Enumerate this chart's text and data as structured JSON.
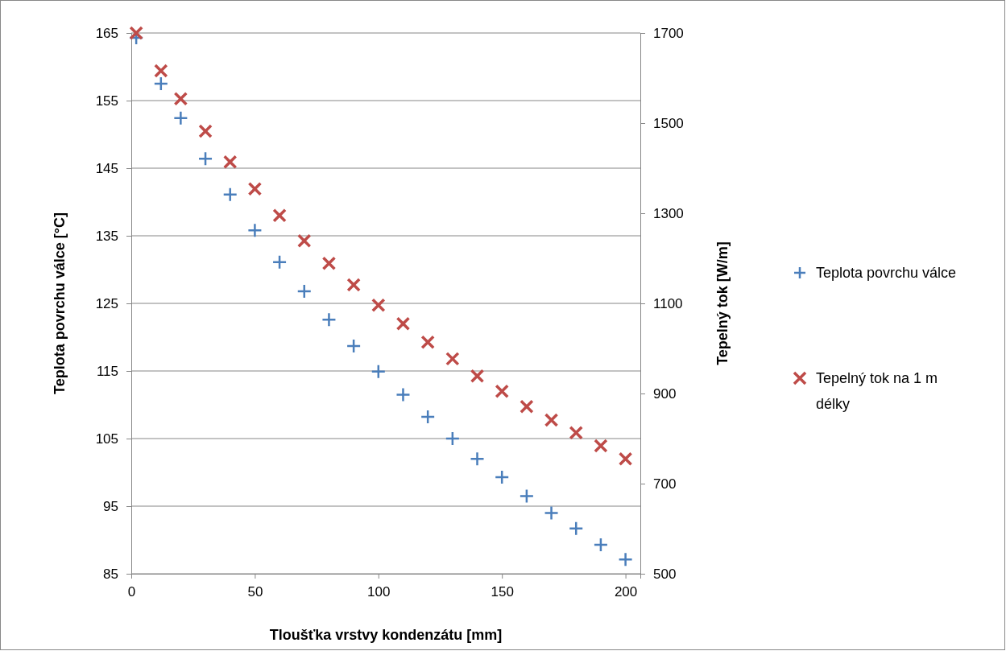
{
  "chart_data": {
    "type": "scatter",
    "xlabel": "Tloušťka vrstvy kondenzátu [mm]",
    "ylabel": "Teplota povrchu válce [°C]",
    "y2label": "Tepelný tok [W/m]",
    "x": [
      2,
      12,
      20,
      30,
      40,
      50,
      60,
      70,
      80,
      90,
      100,
      110,
      120,
      130,
      140,
      150,
      160,
      170,
      180,
      190,
      200
    ],
    "xlim": [
      0,
      206
    ],
    "xticks": [
      0,
      50,
      100,
      150,
      200
    ],
    "ylim": [
      85,
      165
    ],
    "yticks": [
      85,
      95,
      105,
      115,
      125,
      135,
      145,
      155,
      165
    ],
    "y2lim": [
      500,
      1700
    ],
    "y2ticks": [
      500,
      700,
      900,
      1100,
      1300,
      1500,
      1700
    ],
    "grid": "y",
    "legend": "right",
    "series": [
      {
        "name": "Teplota povrchu válce",
        "color": "#4a7ebb",
        "marker": "plus",
        "values": [
          164.3,
          157.5,
          152.4,
          146.4,
          141.1,
          135.8,
          131.1,
          126.8,
          122.6,
          118.7,
          114.9,
          111.5,
          108.2,
          105.0,
          102.0,
          99.3,
          96.5,
          94.0,
          91.7,
          89.3,
          87.1
        ]
      },
      {
        "name": "Tepelný tok na 1 m délky",
        "color": "#be4b48",
        "marker": "cross",
        "axis": "y2",
        "values": [
          1700,
          1616,
          1554,
          1482,
          1414,
          1354,
          1295,
          1239,
          1189,
          1141,
          1096,
          1055,
          1014,
          977,
          939,
          905,
          871,
          841,
          813,
          784,
          755
        ]
      }
    ]
  }
}
